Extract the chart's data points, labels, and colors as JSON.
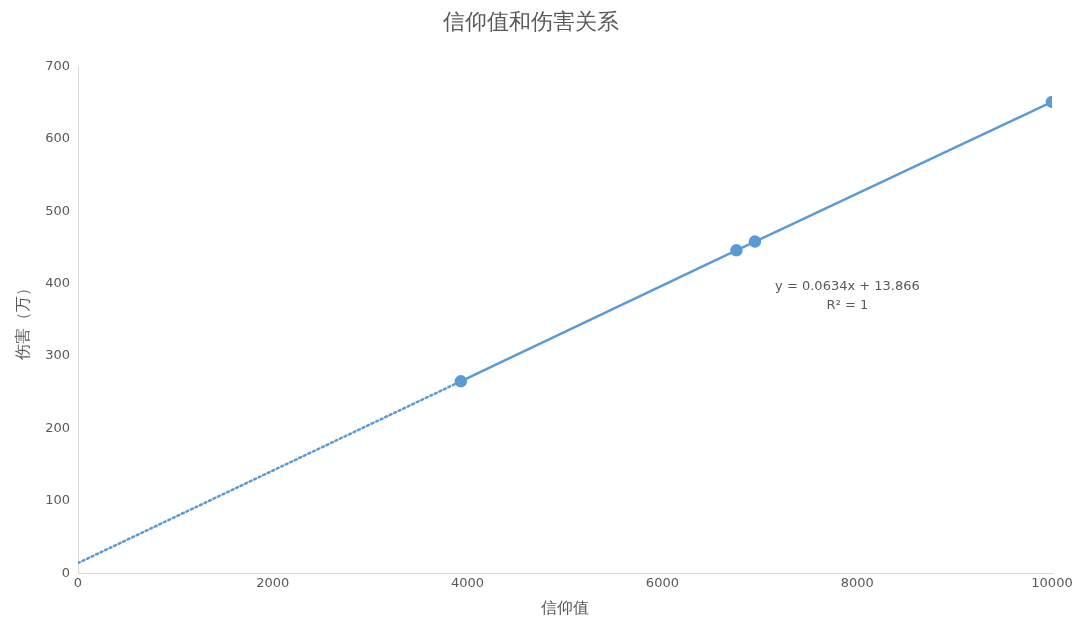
{
  "chart_data": {
    "type": "line",
    "title": "信仰值和伤害关系",
    "xlabel": "信仰值",
    "ylabel": "伤害（万）",
    "xlim": [
      0,
      10000
    ],
    "xticks": [
      0,
      2000,
      4000,
      6000,
      8000,
      10000
    ],
    "ylim": [
      0,
      700
    ],
    "yticks": [
      0,
      100,
      200,
      300,
      400,
      500,
      600,
      700
    ],
    "grid": false,
    "legend": false,
    "series": [
      {
        "color": "#5b9bd5",
        "x": [
          3930,
          6760,
          6950,
          10000
        ],
        "values": [
          265,
          446,
          458,
          651
        ],
        "marker": "circle",
        "line_style": "solid"
      },
      {
        "type": "line",
        "color": "#5b9bd5",
        "x": [
          0,
          3930
        ],
        "values": [
          14,
          265
        ],
        "marker": "none",
        "line_style": "dotted"
      }
    ],
    "annotations": [
      "y = 0.0634x + 13.866",
      "R² = 1"
    ]
  }
}
